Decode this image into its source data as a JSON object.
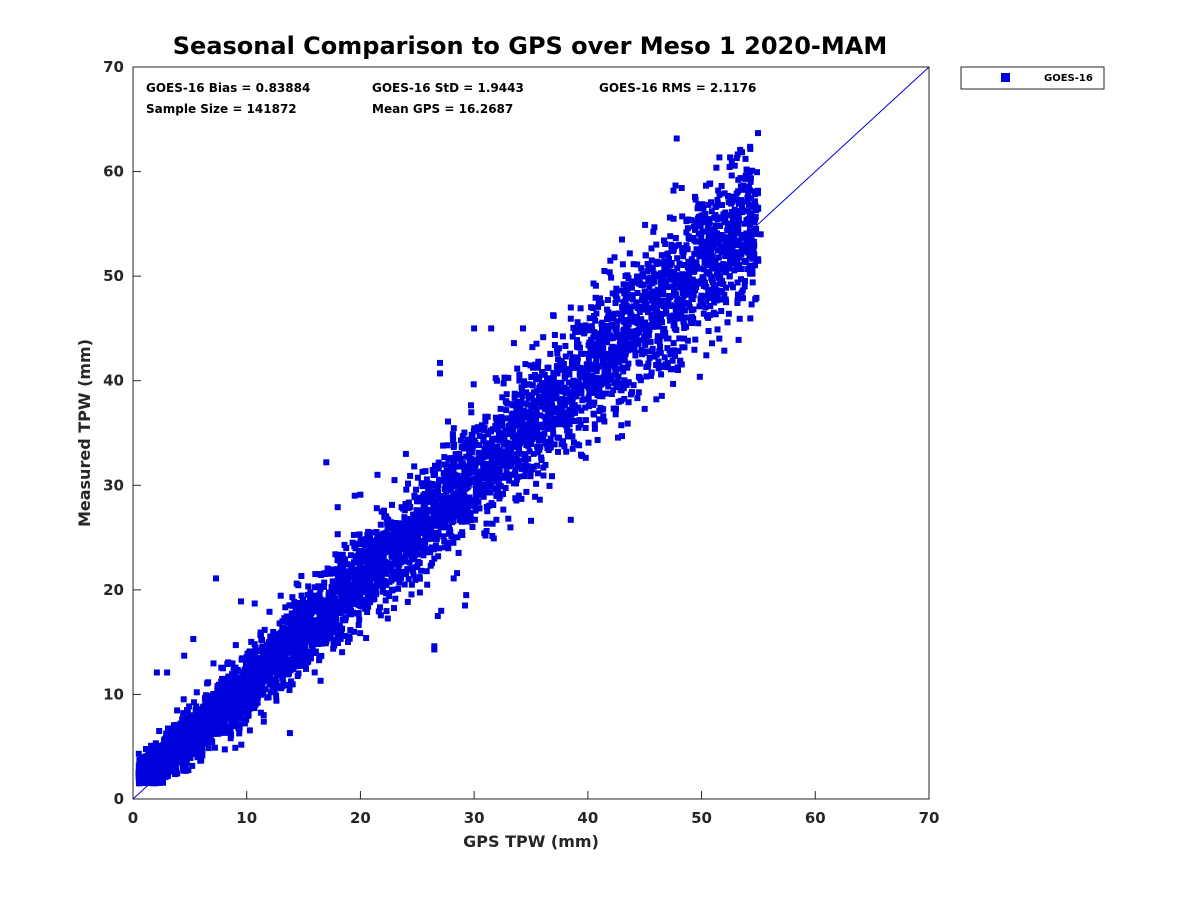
{
  "chart_data": {
    "type": "scatter",
    "title": "Seasonal Comparison to GPS over Meso 1 2020-MAM",
    "xlabel": "GPS TPW (mm)",
    "ylabel": "Measured TPW (mm)",
    "xlim": [
      0,
      70
    ],
    "ylim": [
      0,
      70
    ],
    "x_ticks": [
      "0",
      "10",
      "20",
      "30",
      "40",
      "50",
      "60",
      "70"
    ],
    "y_ticks": [
      "0",
      "10",
      "20",
      "30",
      "40",
      "50",
      "60",
      "70"
    ],
    "grid": false,
    "legend_position": "outside-top-right",
    "series": [
      {
        "name": "GOES-16",
        "color": "#0000dd",
        "marker": "square",
        "density_band": {
          "x_range": [
            0.5,
            55
          ],
          "center_offset": 0.84,
          "spread_sd": 1.94,
          "sample_size": 141872
        },
        "outliers": [
          [
            2.1,
            12.1
          ],
          [
            7.3,
            21.1
          ],
          [
            17,
            32.2
          ],
          [
            24,
            33
          ],
          [
            30,
            45
          ],
          [
            31.5,
            45
          ],
          [
            38.5,
            47
          ],
          [
            43,
            53.5
          ],
          [
            50,
            55.8
          ],
          [
            50.9,
            56.2
          ],
          [
            51.8,
            56.8
          ],
          [
            54.6,
            55.4
          ],
          [
            55.2,
            54
          ],
          [
            54.5,
            49.4
          ],
          [
            54.4,
            47.3
          ],
          [
            52.4,
            46.4
          ],
          [
            28.5,
            21.6
          ],
          [
            28.2,
            21.1
          ],
          [
            29.2,
            18.5
          ],
          [
            29.3,
            19.5
          ],
          [
            27.1,
            18
          ],
          [
            26.8,
            17.5
          ],
          [
            26.5,
            14.3
          ],
          [
            26.5,
            14.6
          ],
          [
            33,
            26.8
          ],
          [
            31,
            25.2
          ],
          [
            35,
            26.6
          ],
          [
            38.5,
            26.7
          ],
          [
            43,
            34.7
          ],
          [
            45,
            37.3
          ],
          [
            47.5,
            39.7
          ],
          [
            46,
            41.5
          ],
          [
            27,
            41.7
          ],
          [
            27,
            40.7
          ],
          [
            32,
            40
          ],
          [
            34.3,
            45
          ],
          [
            15.8,
            14.3
          ],
          [
            16.5,
            11.3
          ],
          [
            15,
            12.8
          ],
          [
            12.7,
            14.2
          ],
          [
            9.5,
            18.9
          ],
          [
            20,
            29.1
          ],
          [
            23,
            30.5
          ],
          [
            29,
            34.7
          ],
          [
            35.5,
            39
          ],
          [
            41.5,
            44.2
          ],
          [
            44.8,
            50.2
          ],
          [
            47.5,
            52.4
          ],
          [
            49.5,
            53.3
          ],
          [
            53,
            52.2
          ],
          [
            52.5,
            51.5
          ],
          [
            39.5,
            32.8
          ],
          [
            41,
            36.3
          ],
          [
            43.5,
            35.9
          ],
          [
            48.5,
            43.2
          ],
          [
            51,
            49.4
          ],
          [
            52,
            48.2
          ],
          [
            10.7,
            18.7
          ],
          [
            12,
            17.9
          ],
          [
            14.4,
            20.6
          ],
          [
            18.6,
            24.3
          ],
          [
            13.8,
            6.3
          ],
          [
            11.5,
            7.4
          ],
          [
            9,
            4.9
          ],
          [
            6,
            3.7
          ],
          [
            20.5,
            15.4
          ],
          [
            22.5,
            19.4
          ],
          [
            24.5,
            22.1
          ],
          [
            4.5,
            13.7
          ],
          [
            3,
            12.1
          ],
          [
            5.3,
            15.3
          ],
          [
            21.5,
            31
          ],
          [
            19.5,
            29
          ],
          [
            18,
            27.9
          ],
          [
            33.5,
            43.6
          ],
          [
            37,
            46.2
          ],
          [
            40.5,
            49.3
          ],
          [
            42.5,
            48.8
          ],
          [
            46.5,
            52
          ],
          [
            48,
            53
          ],
          [
            1.2,
            1.9
          ],
          [
            0.6,
            1.9
          ],
          [
            1.8,
            4.8
          ],
          [
            2.3,
            6.5
          ]
        ]
      },
      {
        "name": "1:1 line",
        "type": "line",
        "color": "#0000dd",
        "points": [
          [
            0,
            0
          ],
          [
            70,
            70
          ]
        ]
      }
    ],
    "annotations": {
      "bias": "GOES-16 Bias = 0.83884",
      "std": "GOES-16 StD = 1.9443",
      "rms": "GOES-16 RMS = 2.1176",
      "sample_size": "Sample Size = 141872",
      "mean_gps": "Mean GPS = 16.2687"
    },
    "legend": [
      "GOES-16"
    ]
  }
}
